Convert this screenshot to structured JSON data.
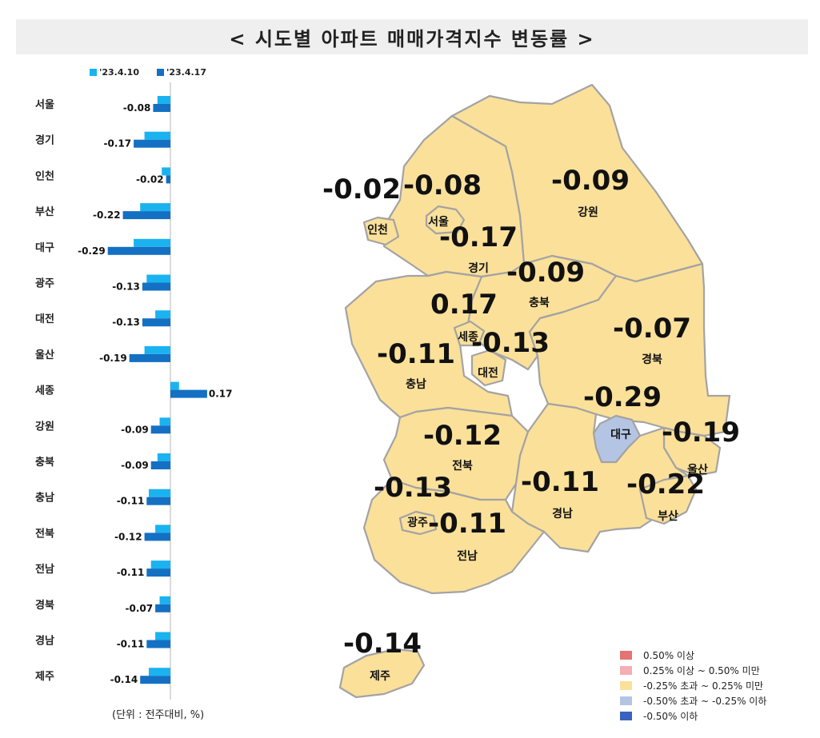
{
  "title": "< 시도별 아파트 매매가격지수 변동률 >",
  "unit_note": "(단위 : 전주대비, %)",
  "colors": {
    "prev_week": "#1ab3f0",
    "this_week": "#1470c3",
    "map_yellow": "#fbe09a",
    "map_blue": "#b4c5e4",
    "map_border": "#a3a3a3"
  },
  "chart_data": {
    "type": "bar",
    "orientation": "horizontal",
    "categories": [
      "서울",
      "경기",
      "인천",
      "부산",
      "대구",
      "광주",
      "대전",
      "울산",
      "세종",
      "강원",
      "충북",
      "충남",
      "전북",
      "전남",
      "경북",
      "경남",
      "제주"
    ],
    "series": [
      {
        "name": "'23.4.10",
        "values": [
          -0.06,
          -0.12,
          -0.04,
          -0.14,
          -0.17,
          -0.11,
          -0.07,
          -0.12,
          0.04,
          -0.05,
          -0.06,
          -0.1,
          -0.07,
          -0.09,
          -0.05,
          -0.07,
          -0.1
        ]
      },
      {
        "name": "'23.4.17",
        "values": [
          -0.08,
          -0.17,
          -0.02,
          -0.22,
          -0.29,
          -0.13,
          -0.13,
          -0.19,
          0.17,
          -0.09,
          -0.09,
          -0.11,
          -0.12,
          -0.11,
          -0.07,
          -0.11,
          -0.14
        ]
      }
    ],
    "data_labels": [
      "-0.08",
      "-0.17",
      "-0.02",
      "-0.22",
      "-0.29",
      "-0.13",
      "-0.13",
      "-0.19",
      "0.17",
      "-0.09",
      "-0.09",
      "-0.11",
      "-0.12",
      "-0.11",
      "-0.07",
      "-0.11",
      "-0.14"
    ],
    "legend_position": "top",
    "xlim": [
      -0.35,
      0.25
    ]
  },
  "map": {
    "regions": [
      {
        "name": "서울",
        "value": "-0.08",
        "color": "yellow"
      },
      {
        "name": "인천",
        "value": "-0.02",
        "color": "yellow"
      },
      {
        "name": "경기",
        "value": "-0.17",
        "color": "yellow"
      },
      {
        "name": "강원",
        "value": "-0.09",
        "color": "yellow"
      },
      {
        "name": "충북",
        "value": "-0.09",
        "color": "yellow"
      },
      {
        "name": "세종",
        "value": "0.17",
        "color": "yellow"
      },
      {
        "name": "대전",
        "value": "-0.13",
        "color": "yellow"
      },
      {
        "name": "충남",
        "value": "-0.11",
        "color": "yellow"
      },
      {
        "name": "경북",
        "value": "-0.07",
        "color": "yellow"
      },
      {
        "name": "대구",
        "value": "-0.29",
        "color": "blue"
      },
      {
        "name": "울산",
        "value": "-0.19",
        "color": "yellow"
      },
      {
        "name": "전북",
        "value": "-0.12",
        "color": "yellow"
      },
      {
        "name": "경남",
        "value": "-0.11",
        "color": "yellow"
      },
      {
        "name": "부산",
        "value": "-0.22",
        "color": "yellow"
      },
      {
        "name": "광주",
        "value": "-0.13",
        "color": "yellow"
      },
      {
        "name": "전남",
        "value": "-0.11",
        "color": "yellow"
      },
      {
        "name": "제주",
        "value": "-0.14",
        "color": "yellow"
      }
    ]
  },
  "map_legend": [
    {
      "label": "0.50% 이상",
      "color": "#e57373"
    },
    {
      "label": "0.25% 이상 ~ 0.50% 미만",
      "color": "#f4aeb4"
    },
    {
      "label": "-0.25% 초과 ~ 0.25% 미만",
      "color": "#fbe09a"
    },
    {
      "label": "-0.50% 초과 ~ -0.25% 이하",
      "color": "#b4c5e4"
    },
    {
      "label": "-0.50% 이하",
      "color": "#3b62bf"
    }
  ]
}
